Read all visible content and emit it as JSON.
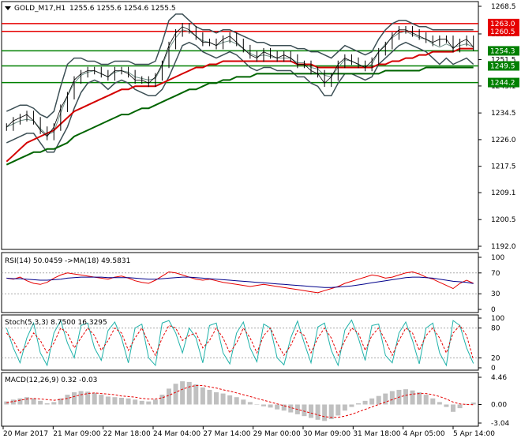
{
  "header": {
    "symbol_label": "GOLD_M17,H1",
    "ohlc": "1255.6 1255.6 1254.6 1255.5"
  },
  "colors": {
    "candle": "#000000",
    "ma_fast": "#d40000",
    "ma_slow": "#006400",
    "bands": "#3c4f55",
    "bands_mid": "#6f8f86",
    "level_red": "#e60000",
    "level_green": "#008000",
    "rsi_line": "#e60000",
    "rsi_ma": "#00008b",
    "stoch_main": "#20b2aa",
    "stoch_signal": "#e60000",
    "macd_hist": "#c0c0c0",
    "macd_signal": "#e60000"
  },
  "chart_data": [
    {
      "type": "line",
      "panel": "price",
      "title": "GOLD_M17,H1",
      "y_ticks": [
        "1268.5",
        "1259.7",
        "1251.5",
        "1243.1",
        "1234.5",
        "1226.0",
        "1217.5",
        "1209.1",
        "1200.5",
        "1192.0"
      ],
      "ylim": [
        1192.0,
        1268.5
      ],
      "x_ticks": [
        "20 Mar 2017",
        "21 Mar 09:00",
        "22 Mar 18:00",
        "24 Mar 04:00",
        "27 Mar 14:00",
        "29 Mar 00:00",
        "30 Mar 09:00",
        "31 Mar 18:00",
        "4 Apr 05:00",
        "5 Apr 14:00"
      ],
      "levels": [
        {
          "label": "1263.0",
          "value": 1263.0,
          "color": "red"
        },
        {
          "label": "1260.5",
          "value": 1260.5,
          "color": "red"
        },
        {
          "label": "1254.3",
          "value": 1254.3,
          "color": "green"
        },
        {
          "label": "1249.5",
          "value": 1249.5,
          "color": "green"
        },
        {
          "label": "1244.2",
          "value": 1244.2,
          "color": "green"
        }
      ],
      "price": [
        1230,
        1232,
        1233,
        1234,
        1232,
        1229,
        1227,
        1230,
        1236,
        1240,
        1245,
        1247,
        1248,
        1248,
        1247,
        1246,
        1248,
        1248,
        1247,
        1245,
        1245,
        1244,
        1246,
        1250,
        1256,
        1260,
        1262,
        1261,
        1259,
        1257,
        1257,
        1256,
        1258,
        1259,
        1257,
        1255,
        1253,
        1252,
        1254,
        1253,
        1252,
        1253,
        1252,
        1250,
        1250,
        1248,
        1247,
        1244,
        1246,
        1250,
        1252,
        1251,
        1250,
        1249,
        1251,
        1254,
        1256,
        1259,
        1261,
        1261,
        1260,
        1259,
        1258,
        1257,
        1258,
        1258,
        1255,
        1257,
        1258,
        1255.5
      ],
      "ma_fast": [
        1219,
        1221,
        1223,
        1225,
        1226,
        1227,
        1228,
        1229,
        1231,
        1233,
        1235,
        1236,
        1237,
        1238,
        1239,
        1240,
        1241,
        1242,
        1242,
        1243,
        1243,
        1243,
        1243,
        1244,
        1245,
        1246,
        1247,
        1248,
        1249,
        1249,
        1250,
        1250,
        1251,
        1251,
        1251,
        1251,
        1251,
        1251,
        1251,
        1251,
        1251,
        1251,
        1251,
        1250,
        1250,
        1250,
        1249,
        1249,
        1249,
        1249,
        1249,
        1249,
        1249,
        1249,
        1249,
        1250,
        1250,
        1251,
        1251,
        1252,
        1252,
        1253,
        1253,
        1254,
        1254,
        1254,
        1254,
        1255,
        1255,
        1255
      ],
      "ma_slow": [
        1218,
        1219,
        1220,
        1221,
        1222,
        1222,
        1223,
        1223,
        1224,
        1225,
        1227,
        1228,
        1229,
        1230,
        1231,
        1232,
        1233,
        1234,
        1234,
        1235,
        1236,
        1236,
        1237,
        1238,
        1239,
        1240,
        1241,
        1242,
        1242,
        1243,
        1244,
        1244,
        1245,
        1245,
        1246,
        1246,
        1246,
        1247,
        1247,
        1247,
        1247,
        1247,
        1247,
        1247,
        1247,
        1247,
        1247,
        1247,
        1247,
        1247,
        1247,
        1247,
        1247,
        1247,
        1247,
        1247,
        1248,
        1248,
        1248,
        1248,
        1248,
        1248,
        1249,
        1249,
        1249,
        1249,
        1249,
        1249,
        1249,
        1249
      ],
      "band_upper": [
        1235,
        1236,
        1237,
        1237,
        1236,
        1234,
        1233,
        1235,
        1243,
        1250,
        1252,
        1252,
        1251,
        1251,
        1250,
        1250,
        1251,
        1251,
        1251,
        1250,
        1250,
        1250,
        1251,
        1257,
        1264,
        1266,
        1266,
        1264,
        1262,
        1261,
        1261,
        1260,
        1261,
        1261,
        1260,
        1259,
        1258,
        1257,
        1257,
        1256,
        1256,
        1256,
        1256,
        1255,
        1255,
        1254,
        1254,
        1253,
        1252,
        1254,
        1256,
        1255,
        1254,
        1253,
        1254,
        1258,
        1261,
        1263,
        1264,
        1264,
        1263,
        1262,
        1262,
        1261,
        1261,
        1261,
        1261,
        1261,
        1261,
        1261
      ],
      "band_lower": [
        1225,
        1226,
        1227,
        1228,
        1228,
        1225,
        1222,
        1222,
        1226,
        1230,
        1236,
        1241,
        1244,
        1245,
        1244,
        1242,
        1244,
        1245,
        1244,
        1242,
        1241,
        1240,
        1240,
        1242,
        1246,
        1251,
        1256,
        1257,
        1256,
        1254,
        1253,
        1252,
        1253,
        1254,
        1253,
        1251,
        1249,
        1248,
        1249,
        1249,
        1248,
        1248,
        1248,
        1246,
        1246,
        1244,
        1243,
        1240,
        1240,
        1244,
        1247,
        1247,
        1246,
        1245,
        1246,
        1250,
        1252,
        1254,
        1256,
        1257,
        1256,
        1255,
        1254,
        1252,
        1250,
        1252,
        1250,
        1251,
        1252,
        1250
      ]
    },
    {
      "type": "line",
      "panel": "rsi",
      "title": "RSI(14) 50.0459 ->MA(18) 49.5831",
      "ylim": [
        0,
        100
      ],
      "y_ticks": [
        "100",
        "70",
        "30",
        "0"
      ],
      "series": [
        {
          "name": "RSI(14)",
          "values": [
            60,
            58,
            62,
            55,
            50,
            48,
            52,
            60,
            66,
            70,
            68,
            66,
            64,
            62,
            60,
            58,
            62,
            64,
            60,
            55,
            52,
            50,
            56,
            64,
            72,
            70,
            66,
            62,
            58,
            56,
            58,
            55,
            52,
            50,
            48,
            46,
            44,
            46,
            48,
            46,
            44,
            42,
            40,
            38,
            36,
            34,
            32,
            36,
            40,
            44,
            50,
            54,
            58,
            62,
            66,
            64,
            60,
            62,
            66,
            70,
            72,
            68,
            62,
            58,
            52,
            46,
            40,
            50,
            56,
            50
          ]
        },
        {
          "name": "MA(18)",
          "values": [
            60,
            59,
            59,
            58,
            57,
            56,
            56,
            57,
            58,
            60,
            61,
            62,
            62,
            62,
            62,
            61,
            61,
            61,
            61,
            60,
            59,
            58,
            58,
            59,
            60,
            61,
            62,
            62,
            61,
            60,
            59,
            58,
            57,
            56,
            55,
            54,
            53,
            52,
            51,
            50,
            49,
            48,
            47,
            46,
            45,
            44,
            43,
            42,
            42,
            43,
            44,
            45,
            47,
            49,
            51,
            53,
            55,
            57,
            59,
            61,
            62,
            62,
            61,
            60,
            58,
            56,
            54,
            53,
            52,
            49.6
          ]
        }
      ]
    },
    {
      "type": "line",
      "panel": "stochastic",
      "title": "Stoch(5,3,3) 8.7500 16.3295",
      "ylim": [
        0,
        100
      ],
      "y_ticks": [
        "100",
        "80",
        "20",
        "0"
      ],
      "series": [
        {
          "name": "Stoch main",
          "values": [
            80,
            40,
            10,
            60,
            90,
            30,
            5,
            70,
            95,
            50,
            20,
            85,
            90,
            40,
            15,
            75,
            92,
            60,
            10,
            80,
            88,
            20,
            5,
            90,
            95,
            70,
            30,
            80,
            60,
            10,
            85,
            90,
            30,
            8,
            70,
            92,
            40,
            12,
            88,
            80,
            20,
            6,
            60,
            94,
            50,
            10,
            82,
            90,
            35,
            5,
            76,
            96,
            60,
            15,
            85,
            88,
            25,
            10,
            70,
            92,
            55,
            8,
            80,
            90,
            30,
            5,
            95,
            85,
            40,
            8.75
          ]
        },
        {
          "name": "Stoch signal",
          "values": [
            70,
            55,
            30,
            45,
            70,
            55,
            30,
            50,
            80,
            70,
            40,
            60,
            80,
            65,
            35,
            55,
            80,
            70,
            35,
            60,
            80,
            50,
            25,
            60,
            85,
            80,
            55,
            65,
            70,
            40,
            55,
            80,
            60,
            30,
            50,
            80,
            60,
            30,
            65,
            80,
            50,
            25,
            45,
            75,
            65,
            30,
            60,
            80,
            60,
            25,
            55,
            80,
            70,
            35,
            65,
            80,
            55,
            25,
            55,
            80,
            70,
            35,
            65,
            80,
            60,
            30,
            70,
            85,
            65,
            16.33
          ]
        }
      ]
    },
    {
      "type": "bar",
      "panel": "macd",
      "title": "MACD(12,26,9) 0.32 -0.03",
      "ylim": [
        -3.04,
        4.46
      ],
      "y_ticks": [
        "4.46",
        "0.00",
        "-3.04"
      ],
      "series": [
        {
          "name": "MACD",
          "values": [
            0.5,
            0.8,
            1.0,
            1.2,
            1.0,
            0.6,
            0.2,
            0.4,
            1.0,
            1.6,
            2.0,
            2.2,
            2.1,
            1.9,
            1.6,
            1.3,
            1.2,
            1.1,
            1.0,
            0.8,
            0.6,
            0.5,
            0.8,
            1.6,
            2.6,
            3.4,
            3.8,
            3.7,
            3.3,
            2.8,
            2.4,
            2.0,
            1.8,
            1.5,
            1.2,
            0.8,
            0.4,
            0.0,
            -0.3,
            -0.5,
            -0.8,
            -1.0,
            -1.3,
            -1.6,
            -1.9,
            -2.2,
            -2.5,
            -2.7,
            -2.4,
            -1.8,
            -1.0,
            -0.4,
            0.2,
            0.6,
            1.0,
            1.4,
            1.8,
            2.2,
            2.4,
            2.5,
            2.3,
            2.0,
            1.6,
            1.0,
            0.4,
            -0.4,
            -1.2,
            -0.6,
            0.1,
            0.32
          ]
        },
        {
          "name": "Signal",
          "values": [
            0.3,
            0.5,
            0.7,
            0.9,
            1.0,
            0.9,
            0.8,
            0.7,
            0.8,
            1.0,
            1.3,
            1.6,
            1.8,
            1.9,
            1.8,
            1.7,
            1.6,
            1.4,
            1.3,
            1.2,
            1.0,
            0.9,
            0.9,
            1.1,
            1.5,
            2.0,
            2.5,
            2.9,
            3.1,
            3.1,
            2.9,
            2.7,
            2.4,
            2.2,
            1.9,
            1.6,
            1.3,
            1.0,
            0.7,
            0.4,
            0.1,
            -0.2,
            -0.5,
            -0.8,
            -1.1,
            -1.4,
            -1.7,
            -2.0,
            -2.1,
            -2.1,
            -1.9,
            -1.6,
            -1.2,
            -0.8,
            -0.4,
            0.0,
            0.4,
            0.8,
            1.2,
            1.5,
            1.7,
            1.8,
            1.8,
            1.6,
            1.3,
            0.9,
            0.4,
            0.1,
            0.0,
            -0.03
          ]
        }
      ]
    }
  ]
}
